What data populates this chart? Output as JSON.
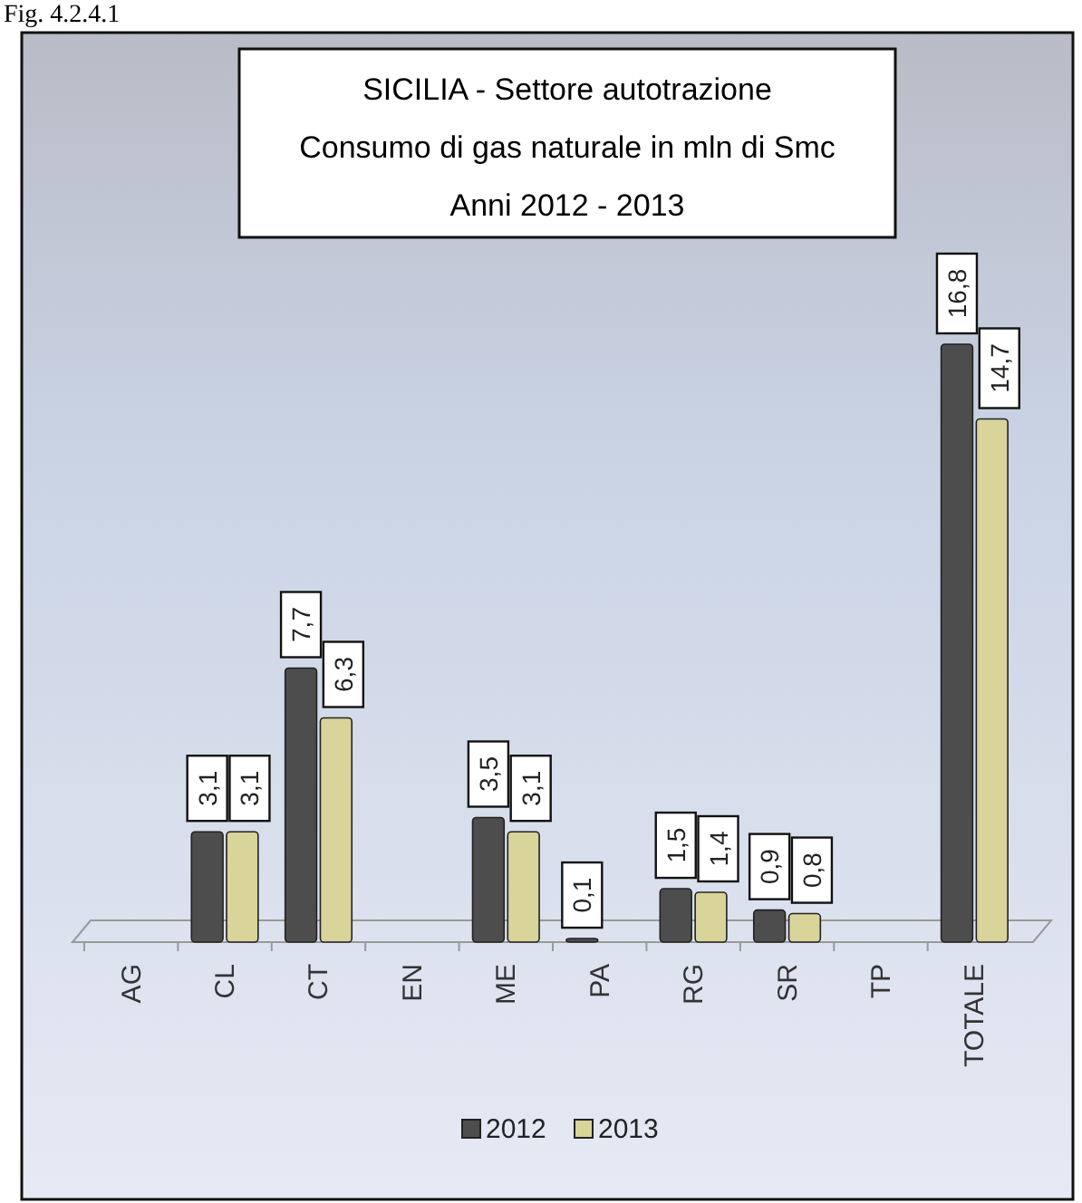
{
  "chart_data": {
    "type": "bar",
    "title": "SICILIA - Settore autotrazione\nConsumo di gas naturale in mln di Smc\nAnni 2012 - 2013",
    "annotations": [
      "Fig. 4.2.4.1"
    ],
    "categories": [
      "AG",
      "CL",
      "CT",
      "EN",
      "ME",
      "PA",
      "RG",
      "SR",
      "TP",
      "TOTALE"
    ],
    "series": [
      {
        "name": "2012",
        "color": "#4d4d4d",
        "values": [
          0,
          3.1,
          7.7,
          0,
          3.5,
          0.1,
          1.5,
          0.9,
          0,
          16.8
        ],
        "value_labels": [
          null,
          "3,1",
          "7,7",
          null,
          "3,5",
          "0,1",
          "1,5",
          "0,9",
          null,
          "16,8"
        ]
      },
      {
        "name": "2013",
        "color": "#d8d49a",
        "values": [
          0,
          3.1,
          6.3,
          0,
          3.1,
          0,
          1.4,
          0.8,
          0,
          14.7
        ],
        "value_labels": [
          null,
          "3,1",
          "6,3",
          null,
          "3,1",
          null,
          "1,4",
          "0,8",
          null,
          "14,7"
        ]
      }
    ],
    "legend": "bottom"
  }
}
